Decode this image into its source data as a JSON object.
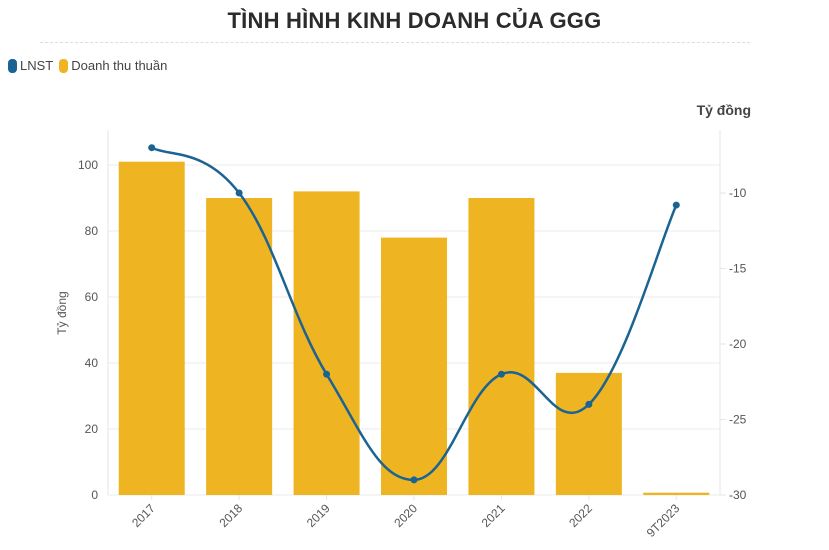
{
  "header": {
    "title": "TÌNH HÌNH KINH DOANH CỦA GGG"
  },
  "legend": [
    {
      "label": "LNST",
      "color": "#1b6491",
      "icon": "rounded-swatch"
    },
    {
      "label": "Doanh thu thuần",
      "color": "#eeb422",
      "icon": "rounded-swatch"
    }
  ],
  "axes": {
    "left_title": "Tỷ đồng",
    "right_title": "Tỷ đồng"
  },
  "chart_data": {
    "type": "bar+line",
    "title": "TÌNH HÌNH KINH DOANH CỦA GGG",
    "categories": [
      "2017",
      "2018",
      "2019",
      "2020",
      "2021",
      "2022",
      "9T2023"
    ],
    "series": [
      {
        "name": "Doanh thu thuần",
        "type": "bar",
        "axis": "left",
        "color": "#eeb422",
        "values": [
          101,
          90,
          92,
          78,
          90,
          37,
          0.7
        ]
      },
      {
        "name": "LNST",
        "type": "line",
        "axis": "right",
        "color": "#1b6491",
        "smooth": true,
        "values": [
          -7.0,
          -10.0,
          -22.0,
          -29.0,
          -22.0,
          -24.0,
          -10.8
        ]
      }
    ],
    "ylabel": "Tỷ đồng",
    "y2label": "Tỷ đồng",
    "ylim": [
      0,
      110
    ],
    "y2lim": [
      -30,
      -6
    ],
    "yticks": [
      0,
      20,
      40,
      60,
      80,
      100
    ],
    "y2ticks": [
      -30,
      -25,
      -20,
      -15,
      -10
    ],
    "grid": true,
    "legend_position": "top-left"
  }
}
